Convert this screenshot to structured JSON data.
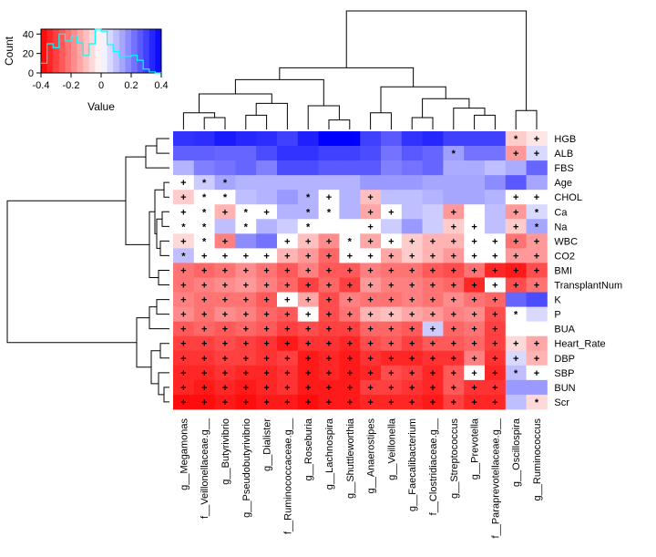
{
  "chart_data": {
    "type": "heatmap",
    "title": "",
    "color_range": [
      -0.4,
      0.4
    ],
    "columns": [
      "g__Megamonas",
      "f__Veillonellaceae.g__",
      "g__Butyrivibrio",
      "g__Pseudobutyrivibrio",
      "g__Dialister",
      "f__Ruminococcaceae.g__",
      "g__Roseburia",
      "g__Lachnospira",
      "g__Shuttleworthia",
      "g__Anaerostipes",
      "g__Veillonella",
      "g__Faecalibacterium",
      "f__Clostridiaceae.g__",
      "g__Streptococcus",
      "g__Prevotella",
      "f__Paraprevotellaceae.g__",
      "g__Oscillospira",
      "g__Ruminococcus"
    ],
    "rows": [
      "HGB",
      "ALB",
      "FBS",
      "Age",
      "CHOL",
      "Ca",
      "Na",
      "WBC",
      "CO2",
      "BMI",
      "TransplantNum",
      "K",
      "P",
      "BUA",
      "Heart_Rate",
      "DBP",
      "SBP",
      "BUN",
      "Scr"
    ],
    "values": [
      [
        0.32,
        0.33,
        0.36,
        0.34,
        0.33,
        0.3,
        0.35,
        0.42,
        0.42,
        0.3,
        0.26,
        0.32,
        0.34,
        0.3,
        0.3,
        0.3,
        -0.08,
        -0.04
      ],
      [
        0.25,
        0.25,
        0.24,
        0.24,
        0.28,
        0.32,
        0.32,
        0.3,
        0.3,
        0.28,
        0.22,
        0.26,
        0.24,
        0.15,
        0.22,
        0.22,
        -0.16,
        0.06
      ],
      [
        0.12,
        0.2,
        0.22,
        0.24,
        0.2,
        0.28,
        0.28,
        0.26,
        0.26,
        0.26,
        0.2,
        0.22,
        0.24,
        0.13,
        0.13,
        0.1,
        0.13,
        0.24
      ],
      [
        0.0,
        0.08,
        0.14,
        0.12,
        0.12,
        0.12,
        0.12,
        0.12,
        0.12,
        0.16,
        0.16,
        0.16,
        0.14,
        0.14,
        0.14,
        0.18,
        0.26,
        0.14
      ],
      [
        -0.08,
        0.0,
        0.0,
        0.1,
        0.12,
        0.16,
        0.12,
        0.0,
        0.12,
        -0.1,
        0.1,
        0.1,
        0.12,
        0.14,
        0.14,
        0.12,
        0.0,
        0.0
      ],
      [
        0.0,
        0.0,
        -0.12,
        0.0,
        0.0,
        0.12,
        0.12,
        0.0,
        0.12,
        -0.14,
        0.0,
        0.1,
        0.08,
        -0.16,
        0.0,
        0.1,
        -0.16,
        0.06
      ],
      [
        0.0,
        0.0,
        0.1,
        0.0,
        0.12,
        0.08,
        0.0,
        0.0,
        0.0,
        0.0,
        0.08,
        0.16,
        0.08,
        -0.08,
        0.0,
        0.1,
        -0.08,
        0.14
      ],
      [
        -0.06,
        0.0,
        -0.2,
        0.18,
        0.22,
        0.0,
        -0.1,
        -0.18,
        0.0,
        -0.14,
        0.0,
        -0.08,
        -0.12,
        -0.12,
        0.0,
        0.0,
        -0.22,
        -0.16
      ],
      [
        0.1,
        0.0,
        0.0,
        0.0,
        0.0,
        -0.12,
        -0.16,
        -0.24,
        0.0,
        0.0,
        -0.14,
        -0.08,
        -0.12,
        -0.16,
        0.0,
        0.0,
        -0.16,
        -0.16
      ],
      [
        -0.22,
        -0.24,
        -0.22,
        -0.18,
        -0.22,
        -0.26,
        -0.2,
        -0.26,
        -0.26,
        -0.2,
        -0.22,
        -0.22,
        -0.26,
        -0.28,
        -0.22,
        -0.34,
        -0.36,
        -0.28
      ],
      [
        -0.22,
        -0.2,
        -0.18,
        -0.16,
        -0.2,
        -0.24,
        -0.3,
        -0.24,
        -0.3,
        -0.16,
        -0.2,
        -0.2,
        -0.22,
        -0.24,
        -0.34,
        0.0,
        -0.28,
        -0.22
      ],
      [
        -0.2,
        -0.22,
        -0.22,
        -0.22,
        -0.26,
        0.0,
        -0.14,
        -0.28,
        -0.2,
        -0.22,
        -0.22,
        -0.2,
        -0.22,
        -0.18,
        -0.22,
        -0.24,
        0.24,
        0.28
      ],
      [
        -0.18,
        -0.22,
        -0.18,
        -0.2,
        -0.24,
        -0.26,
        0.0,
        -0.28,
        -0.22,
        -0.12,
        -0.1,
        -0.14,
        -0.16,
        -0.2,
        -0.18,
        -0.28,
        0.0,
        0.06
      ],
      [
        -0.26,
        -0.24,
        -0.26,
        -0.24,
        -0.26,
        -0.3,
        -0.28,
        -0.3,
        -0.3,
        -0.24,
        -0.24,
        -0.26,
        0.08,
        -0.24,
        -0.22,
        -0.3,
        0.0,
        0.0
      ],
      [
        -0.3,
        -0.3,
        -0.28,
        -0.3,
        -0.32,
        -0.36,
        -0.32,
        -0.32,
        -0.34,
        -0.28,
        -0.26,
        -0.3,
        -0.26,
        -0.26,
        -0.24,
        -0.3,
        -0.06,
        -0.14
      ],
      [
        -0.32,
        -0.32,
        -0.3,
        -0.3,
        -0.32,
        -0.3,
        -0.36,
        -0.34,
        -0.36,
        -0.32,
        -0.34,
        -0.34,
        -0.32,
        -0.32,
        -0.2,
        -0.32,
        0.06,
        -0.12
      ],
      [
        -0.34,
        -0.34,
        -0.32,
        -0.34,
        -0.34,
        -0.32,
        -0.36,
        -0.34,
        -0.36,
        -0.34,
        -0.28,
        -0.3,
        -0.34,
        -0.26,
        0.0,
        -0.34,
        0.1,
        0.0
      ],
      [
        -0.34,
        -0.36,
        -0.34,
        -0.36,
        -0.34,
        -0.32,
        -0.36,
        -0.36,
        -0.36,
        -0.3,
        -0.3,
        -0.32,
        -0.34,
        -0.26,
        -0.32,
        -0.32,
        0.16,
        0.16
      ],
      [
        -0.38,
        -0.38,
        -0.36,
        -0.38,
        -0.36,
        -0.36,
        -0.38,
        -0.36,
        -0.36,
        -0.34,
        -0.34,
        -0.34,
        -0.36,
        -0.3,
        -0.34,
        -0.34,
        0.1,
        -0.06
      ]
    ],
    "symbols": [
      [
        "",
        "",
        "",
        "",
        "",
        "",
        "",
        "",
        "",
        "",
        "",
        "",
        "",
        "",
        "",
        "",
        "*",
        "+"
      ],
      [
        "",
        "",
        "",
        "",
        "",
        "",
        "",
        "",
        "",
        "",
        "",
        "",
        "",
        "*",
        "",
        "",
        "+",
        "+"
      ],
      [
        "",
        "",
        "",
        "",
        "",
        "",
        "",
        "",
        "",
        "",
        "",
        "",
        "",
        "",
        "",
        "",
        "",
        ""
      ],
      [
        "+",
        "*",
        "*",
        "",
        "",
        "",
        "",
        "",
        "",
        "",
        "",
        "",
        "",
        "",
        "",
        "",
        "",
        ""
      ],
      [
        "+",
        "*",
        "*",
        "",
        "",
        "",
        "*",
        "+",
        "",
        "+",
        "",
        "",
        "",
        "",
        "",
        "",
        "+",
        "+"
      ],
      [
        "+",
        "*",
        "+",
        "*",
        "+",
        "",
        "*",
        "*",
        "",
        "+",
        "+",
        "",
        "",
        "+",
        "",
        "",
        "+",
        "*"
      ],
      [
        "*",
        "*",
        "",
        "*",
        "",
        "",
        "*",
        "",
        "",
        "+",
        "",
        "",
        "",
        "+",
        "+",
        "",
        "+",
        "*"
      ],
      [
        "+",
        "*",
        "+",
        "",
        "",
        "+",
        "+",
        "+",
        "*",
        "+",
        "+",
        "+",
        "+",
        "+",
        "+",
        "+",
        "+",
        "+"
      ],
      [
        "*",
        "+",
        "+",
        "+",
        "+",
        "+",
        "+",
        "+",
        "+",
        "+",
        "+",
        "+",
        "+",
        "+",
        "+",
        "+",
        "+",
        "+"
      ],
      [
        "+",
        "+",
        "+",
        "+",
        "+",
        "+",
        "+",
        "+",
        "+",
        "+",
        "+",
        "+",
        "+",
        "+",
        "+",
        "+",
        "+",
        "+"
      ],
      [
        "+",
        "+",
        "+",
        "+",
        "+",
        "+",
        "+",
        "+",
        "+",
        "+",
        "+",
        "+",
        "+",
        "+",
        "+",
        "+",
        "+",
        "+"
      ],
      [
        "+",
        "+",
        "+",
        "+",
        "+",
        "+",
        "+",
        "+",
        "+",
        "+",
        "+",
        "+",
        "+",
        "+",
        "+",
        "+",
        "",
        ""
      ],
      [
        "+",
        "+",
        "+",
        "+",
        "+",
        "+",
        "+",
        "+",
        "+",
        "+",
        "+",
        "+",
        "+",
        "+",
        "+",
        "+",
        "*",
        ""
      ],
      [
        "+",
        "+",
        "+",
        "+",
        "+",
        "+",
        "+",
        "+",
        "+",
        "+",
        "+",
        "+",
        "+",
        "+",
        "+",
        "+",
        "",
        ""
      ],
      [
        "+",
        "+",
        "+",
        "+",
        "+",
        "+",
        "+",
        "+",
        "+",
        "+",
        "+",
        "+",
        "+",
        "+",
        "+",
        "+",
        "+",
        "+"
      ],
      [
        "+",
        "+",
        "+",
        "+",
        "+",
        "+",
        "+",
        "+",
        "+",
        "+",
        "+",
        "+",
        "+",
        "+",
        "+",
        "+",
        "+",
        "+"
      ],
      [
        "+",
        "+",
        "+",
        "+",
        "+",
        "+",
        "+",
        "+",
        "+",
        "+",
        "+",
        "+",
        "+",
        "+",
        "+",
        "+",
        "*",
        "+"
      ],
      [
        "+",
        "+",
        "+",
        "+",
        "+",
        "+",
        "+",
        "+",
        "+",
        "+",
        "+",
        "+",
        "+",
        "+",
        "+",
        "+",
        "",
        ""
      ],
      [
        "+",
        "+",
        "+",
        "+",
        "+",
        "+",
        "+",
        "+",
        "+",
        "+",
        "+",
        "+",
        "+",
        "+",
        "+",
        "+",
        "",
        "*"
      ]
    ],
    "color_key": {
      "xlabel": "Value",
      "ylabel": "Count",
      "x_ticks": [
        "-0.4",
        "-0.2",
        "0",
        "0.2",
        "0.4"
      ],
      "x_tick_values": [
        -0.4,
        -0.2,
        0,
        0.2,
        0.4
      ],
      "y_ticks": [
        "0",
        "20",
        "40"
      ],
      "y_tick_values": [
        0,
        20,
        40
      ],
      "ylim": [
        0,
        45
      ],
      "histogram_counts": [
        10,
        30,
        26,
        40,
        33,
        38,
        31,
        18,
        30,
        45,
        43,
        29,
        22,
        17,
        17,
        18,
        13,
        4,
        1,
        0
      ],
      "histogram_color": "#00ffff",
      "low_color": "#ff0000",
      "mid_color": "#ffffff",
      "high_color": "#0000ff"
    }
  }
}
